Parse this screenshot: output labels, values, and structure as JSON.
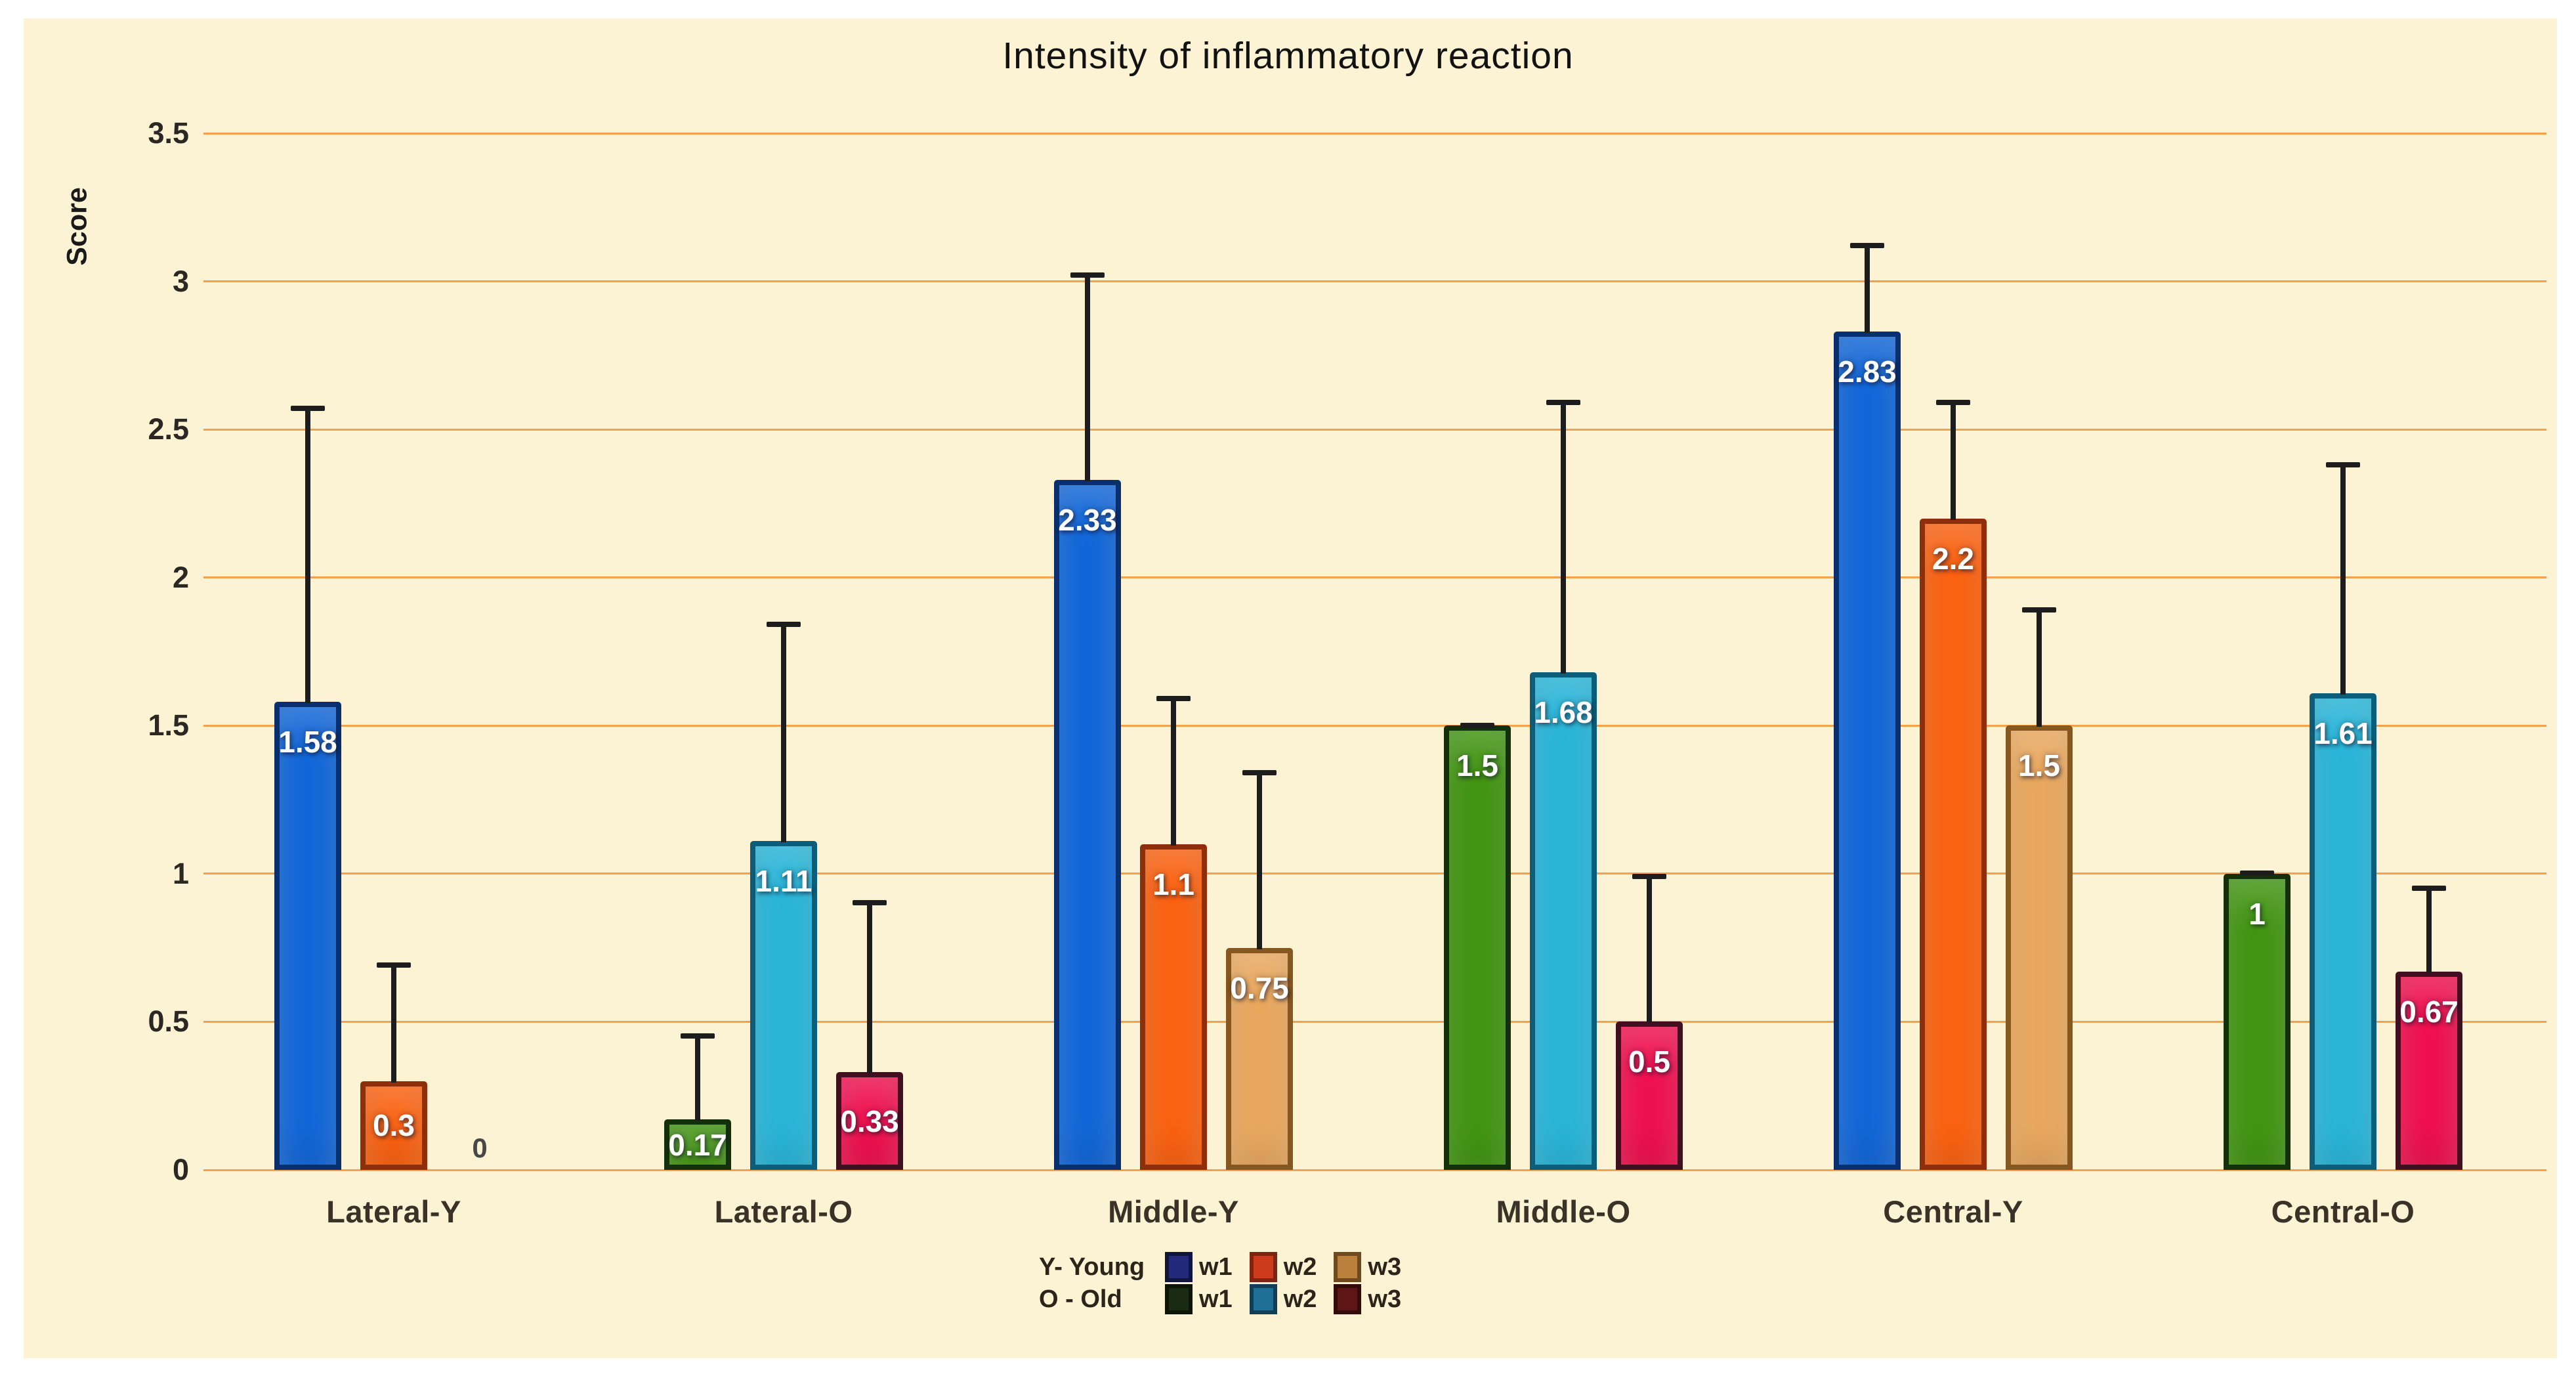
{
  "page": {
    "background": "#ffffff",
    "plot_background": "#fbf3d3"
  },
  "chart_data": {
    "type": "bar",
    "title": "Intensity of inflammatory reaction",
    "ylabel": "Score",
    "ylim": [
      0,
      3.5
    ],
    "grid": true,
    "gridline_color": "#f5a04c",
    "error_bar_color": "#1d1d1d",
    "legend_position": "bottom",
    "yticks": [
      {
        "label": "3.5",
        "value": 3.5
      },
      {
        "label": "3",
        "value": 3
      },
      {
        "label": "2.5",
        "value": 2.5
      },
      {
        "label": "2",
        "value": 2
      },
      {
        "label": "1.5",
        "value": 1.5
      },
      {
        "label": "1",
        "value": 1
      },
      {
        "label": "0.5",
        "value": 0.5
      },
      {
        "label": "0",
        "value": 0
      }
    ],
    "categories": [
      "Lateral-Y",
      "Lateral-O",
      "Middle-Y",
      "Middle-O",
      "Central-Y",
      "Central-O"
    ],
    "series_names": [
      "w1",
      "w2",
      "w3"
    ],
    "groups": [
      {
        "label": "Lateral-Y",
        "palette": "young",
        "bars": [
          {
            "series": "w1",
            "value": 1.58,
            "label": "1.58",
            "error_top": 2.58
          },
          {
            "series": "w2",
            "value": 0.3,
            "label": "0.3",
            "error_top": 0.7
          },
          {
            "series": "w3",
            "value": 0,
            "label": "0",
            "error_top": null
          }
        ]
      },
      {
        "label": "Lateral-O",
        "palette": "old",
        "bars": [
          {
            "series": "w1",
            "value": 0.17,
            "label": "0.17",
            "error_top": 0.46
          },
          {
            "series": "w2",
            "value": 1.11,
            "label": "1.11",
            "error_top": 1.85
          },
          {
            "series": "w3",
            "value": 0.33,
            "label": "0.33",
            "error_top": 0.91
          }
        ]
      },
      {
        "label": "Middle-Y",
        "palette": "young",
        "bars": [
          {
            "series": "w1",
            "value": 2.33,
            "label": "2.33",
            "error_top": 3.03
          },
          {
            "series": "w2",
            "value": 1.1,
            "label": "1.1",
            "error_top": 1.6
          },
          {
            "series": "w3",
            "value": 0.75,
            "label": "0.75",
            "error_top": 1.35
          }
        ]
      },
      {
        "label": "Middle-O",
        "palette": "old",
        "bars": [
          {
            "series": "w1",
            "value": 1.5,
            "label": "1.5",
            "error_top": 1.51
          },
          {
            "series": "w2",
            "value": 1.68,
            "label": "1.68",
            "error_top": 2.6
          },
          {
            "series": "w3",
            "value": 0.5,
            "label": "0.5",
            "error_top": 1.0
          }
        ]
      },
      {
        "label": "Central-Y",
        "palette": "young",
        "bars": [
          {
            "series": "w1",
            "value": 2.83,
            "label": "2.83",
            "error_top": 3.13
          },
          {
            "series": "w2",
            "value": 2.2,
            "label": "2.2",
            "error_top": 2.6
          },
          {
            "series": "w3",
            "value": 1.5,
            "label": "1.5",
            "error_top": 1.9
          }
        ]
      },
      {
        "label": "Central-O",
        "palette": "old",
        "bars": [
          {
            "series": "w1",
            "value": 1,
            "label": "1",
            "error_top": 1.01
          },
          {
            "series": "w2",
            "value": 1.61,
            "label": "1.61",
            "error_top": 2.39
          },
          {
            "series": "w3",
            "value": 0.67,
            "label": "0.67",
            "error_top": 0.96
          }
        ]
      }
    ],
    "colors": {
      "young": [
        {
          "fill": "#0e64d8",
          "border": "#0a2f6e"
        },
        {
          "fill": "#fb5f0d",
          "border": "#8c2f0a"
        },
        {
          "fill": "#e9a75c",
          "border": "#86571e"
        }
      ],
      "old": [
        {
          "fill": "#3e930e",
          "border": "#14300a"
        },
        {
          "fill": "#25b4d8",
          "border": "#0c5d79"
        },
        {
          "fill": "#ef0c4c",
          "border": "#420f20"
        }
      ]
    }
  },
  "legend": {
    "rows": [
      {
        "label": "Y- Young",
        "items": [
          {
            "name": "w1",
            "fill": "#23297b",
            "border": "#10153e"
          },
          {
            "name": "w2",
            "fill": "#cd3a1c",
            "border": "#7e2410"
          },
          {
            "name": "w3",
            "fill": "#bb813c",
            "border": "#6f4a1e"
          }
        ]
      },
      {
        "label": "O - Old",
        "items": [
          {
            "name": "w1",
            "fill": "#1b2a12",
            "border": "#0d1507"
          },
          {
            "name": "w2",
            "fill": "#1f6f97",
            "border": "#113f58"
          },
          {
            "name": "w3",
            "fill": "#5e1515",
            "border": "#330b0b"
          }
        ]
      }
    ]
  }
}
